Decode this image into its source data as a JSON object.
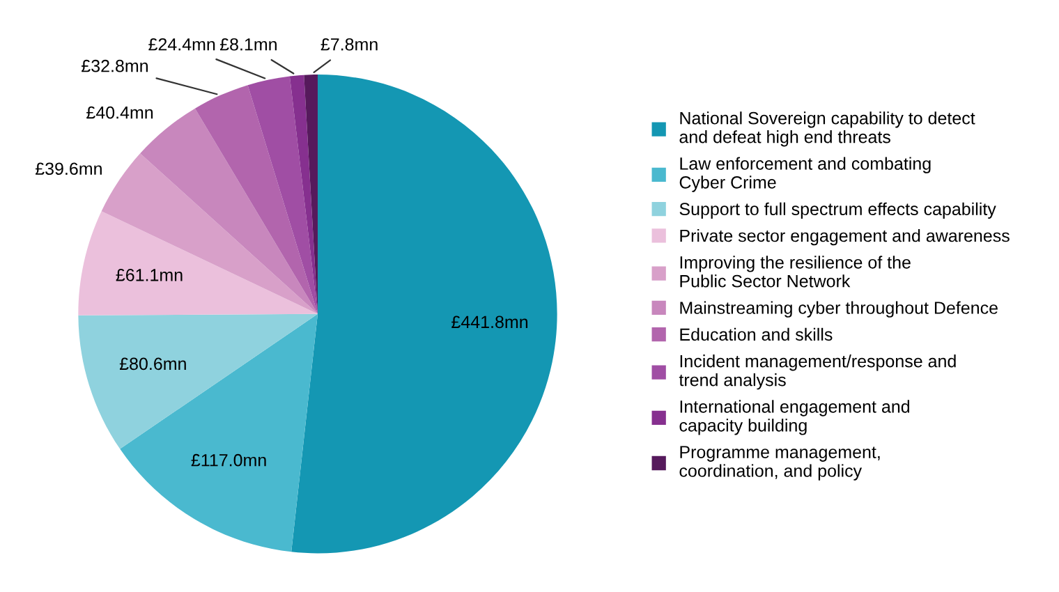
{
  "chart_data": {
    "type": "pie",
    "categories": [
      "National Sovereign capability to detect\nand defeat high end threats",
      "Law enforcement and combating\nCyber Crime",
      "Support to full spectrum effects capability",
      "Private sector engagement and awareness",
      "Improving the resilience of the\nPublic Sector Network",
      "Mainstreaming cyber throughout Defence",
      "Education and skills",
      "Incident management/response and\ntrend analysis",
      "International engagement and\ncapacity building",
      "Programme management,\ncoordination, and policy"
    ],
    "values": [
      441.8,
      117.0,
      80.6,
      61.1,
      39.6,
      40.4,
      32.8,
      24.4,
      8.1,
      7.8
    ],
    "value_labels": [
      "£441.8mn",
      "£117.0mn",
      "£80.6mn",
      "£61.1mn",
      "£39.6mn",
      "£40.4mn",
      "£32.8mn",
      "£24.4mn",
      "£8.1mn",
      "£7.8mn"
    ],
    "colors": [
      "#1497b3",
      "#4ab9cf",
      "#8fd2de",
      "#ebc0dc",
      "#d8a0c9",
      "#c887bd",
      "#b265ad",
      "#a04ea4",
      "#86308f",
      "#561a5c"
    ],
    "legend": "right"
  }
}
